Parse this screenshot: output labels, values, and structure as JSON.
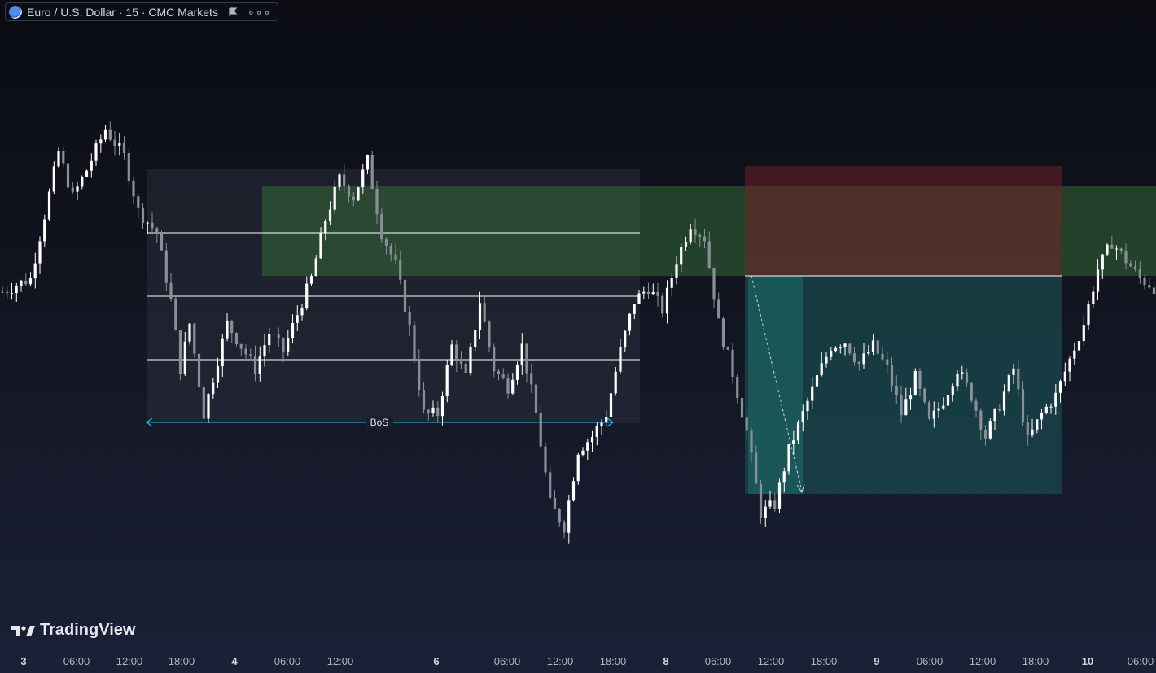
{
  "header": {
    "symbol_text": "Euro / U.S. Dollar · 15 · CMC Markets",
    "icons": [
      "globe-icon",
      "flag-icon",
      "more-icon"
    ]
  },
  "watermark": {
    "text": "TradingView"
  },
  "annotations": {
    "bos_label": "BoS"
  },
  "chart_data": {
    "type": "candlestick",
    "symbol": "Euro / U.S. Dollar",
    "timeframe": "15",
    "source": "CMC Markets",
    "x_ticks": [
      {
        "label": "3",
        "bold": true
      },
      {
        "label": "06:00"
      },
      {
        "label": "12:00"
      },
      {
        "label": "18:00"
      },
      {
        "label": "4",
        "bold": true
      },
      {
        "label": "06:00"
      },
      {
        "label": "12:00"
      },
      {
        "label": "6",
        "bold": true
      },
      {
        "label": "06:00"
      },
      {
        "label": "12:00"
      },
      {
        "label": "18:00"
      },
      {
        "label": "8",
        "bold": true
      },
      {
        "label": "06:00"
      },
      {
        "label": "12:00"
      },
      {
        "label": "18:00"
      },
      {
        "label": "9",
        "bold": true
      },
      {
        "label": "06:00"
      },
      {
        "label": "12:00"
      },
      {
        "label": "18:00"
      },
      {
        "label": "10",
        "bold": true
      },
      {
        "label": "06:00"
      }
    ],
    "relative_price_path": [
      [
        0,
        0.57
      ],
      [
        6,
        0.6
      ],
      [
        12,
        0.88
      ],
      [
        15,
        0.78
      ],
      [
        18,
        0.84
      ],
      [
        22,
        0.93
      ],
      [
        26,
        0.87
      ],
      [
        29,
        0.75
      ],
      [
        33,
        0.7
      ],
      [
        36,
        0.55
      ],
      [
        38,
        0.4
      ],
      [
        40,
        0.5
      ],
      [
        43,
        0.3
      ],
      [
        45,
        0.38
      ],
      [
        48,
        0.5
      ],
      [
        51,
        0.45
      ],
      [
        54,
        0.4
      ],
      [
        57,
        0.48
      ],
      [
        60,
        0.44
      ],
      [
        63,
        0.52
      ],
      [
        66,
        0.6
      ],
      [
        69,
        0.73
      ],
      [
        72,
        0.82
      ],
      [
        75,
        0.78
      ],
      [
        78,
        0.86
      ],
      [
        81,
        0.7
      ],
      [
        84,
        0.63
      ],
      [
        87,
        0.49
      ],
      [
        90,
        0.3
      ],
      [
        93,
        0.3
      ],
      [
        96,
        0.45
      ],
      [
        99,
        0.38
      ],
      [
        102,
        0.55
      ],
      [
        105,
        0.4
      ],
      [
        108,
        0.36
      ],
      [
        111,
        0.45
      ],
      [
        114,
        0.3
      ],
      [
        117,
        0.1
      ],
      [
        120,
        0.05
      ],
      [
        123,
        0.22
      ],
      [
        126,
        0.25
      ],
      [
        129,
        0.3
      ],
      [
        132,
        0.44
      ],
      [
        135,
        0.55
      ],
      [
        138,
        0.58
      ],
      [
        141,
        0.53
      ],
      [
        144,
        0.64
      ],
      [
        147,
        0.72
      ],
      [
        150,
        0.69
      ],
      [
        153,
        0.5
      ],
      [
        156,
        0.39
      ],
      [
        159,
        0.26
      ],
      [
        162,
        0.08
      ],
      [
        165,
        0.1
      ],
      [
        168,
        0.22
      ],
      [
        171,
        0.3
      ],
      [
        174,
        0.38
      ],
      [
        177,
        0.45
      ],
      [
        180,
        0.46
      ],
      [
        183,
        0.41
      ],
      [
        186,
        0.45
      ],
      [
        189,
        0.4
      ],
      [
        192,
        0.3
      ],
      [
        195,
        0.38
      ],
      [
        198,
        0.28
      ],
      [
        201,
        0.33
      ],
      [
        204,
        0.4
      ],
      [
        207,
        0.34
      ],
      [
        210,
        0.25
      ],
      [
        213,
        0.32
      ],
      [
        216,
        0.4
      ],
      [
        219,
        0.24
      ],
      [
        222,
        0.3
      ],
      [
        225,
        0.34
      ],
      [
        228,
        0.42
      ],
      [
        231,
        0.5
      ],
      [
        234,
        0.62
      ],
      [
        237,
        0.68
      ],
      [
        240,
        0.64
      ],
      [
        243,
        0.6
      ],
      [
        246,
        0.58
      ]
    ]
  },
  "theme": {
    "candle_up": "#ffffff",
    "candle_down": "#8a8e97",
    "range_box": "#2a2e3a",
    "green_zone": "#3a7a3a",
    "stop_zone": "#6b1f2a",
    "target_zone": "#1c5e5e",
    "bos_color": "#2bb3e3"
  }
}
